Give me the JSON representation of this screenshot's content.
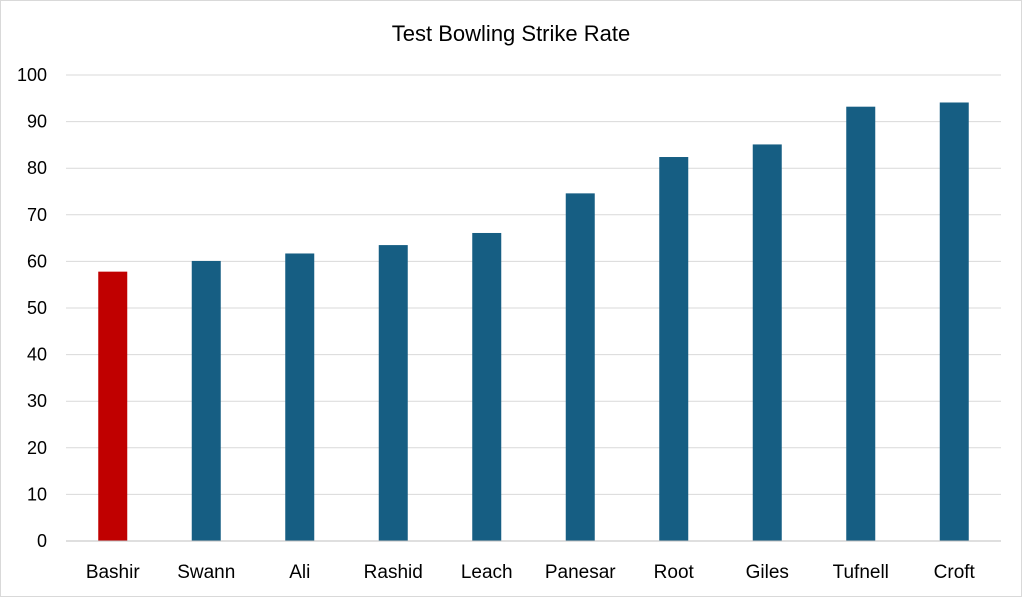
{
  "chart_data": {
    "type": "bar",
    "title": "Test Bowling Strike Rate",
    "xlabel": "",
    "ylabel": "",
    "categories": [
      "Bashir",
      "Swann",
      "Ali",
      "Rashid",
      "Leach",
      "Panesar",
      "Root",
      "Giles",
      "Tufnell",
      "Croft"
    ],
    "values": [
      57.8,
      60.1,
      61.7,
      63.5,
      66.1,
      74.6,
      82.4,
      85.1,
      93.2,
      94.1
    ],
    "ylim": [
      0,
      100
    ],
    "yticks": [
      0,
      10,
      20,
      30,
      40,
      50,
      60,
      70,
      80,
      90,
      100
    ],
    "grid": true,
    "legend": "none",
    "colors": {
      "default": "#165E83",
      "highlight": "#C00000",
      "highlight_category": "Bashir"
    }
  }
}
